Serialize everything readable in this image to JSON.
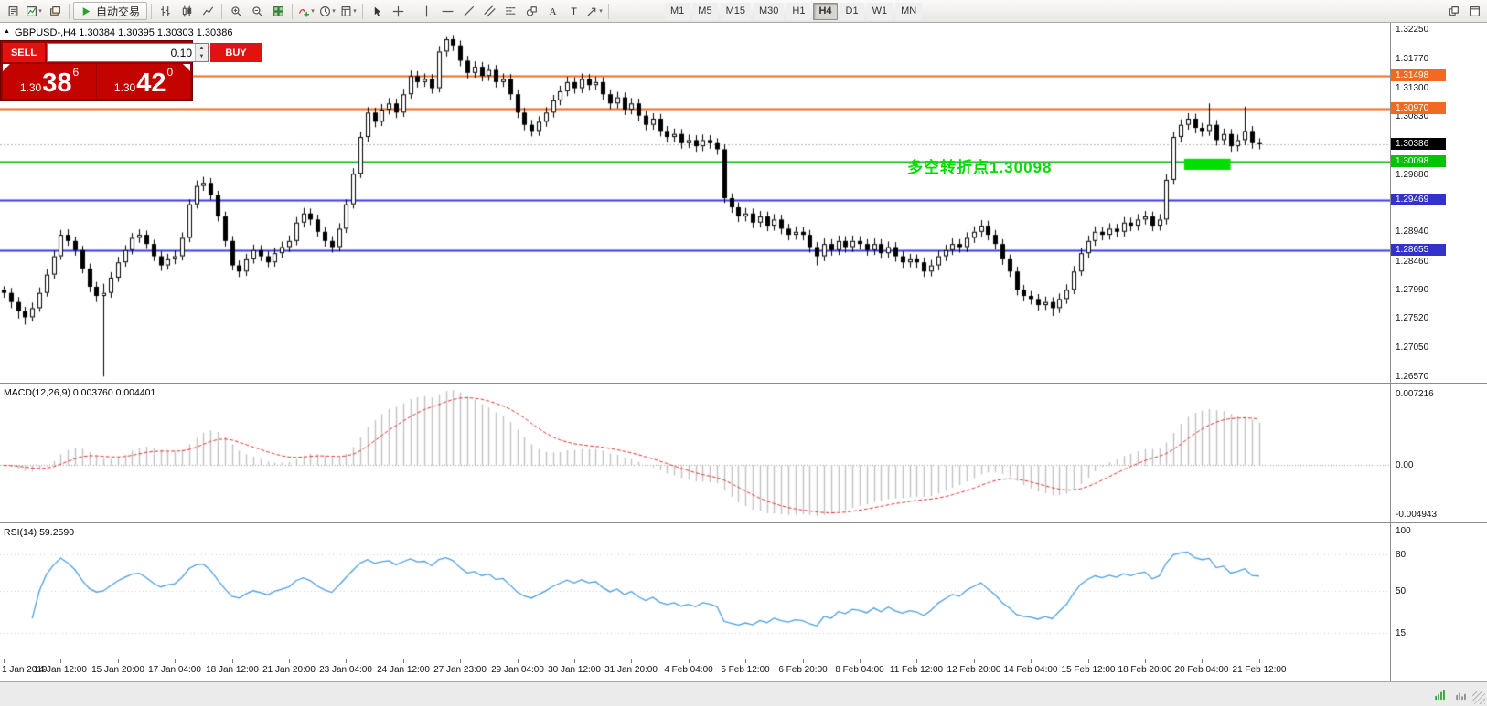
{
  "toolbar": {
    "groups": [
      {
        "buttons": [
          {
            "name": "new-order"
          },
          {
            "name": "new-chart",
            "dropdown": true
          },
          {
            "name": "profiles"
          }
        ]
      },
      {
        "buttons": [
          {
            "name": "autotrading",
            "label": "自动交易"
          }
        ]
      },
      {
        "buttons": [
          {
            "name": "bar-chart"
          },
          {
            "name": "candle-chart"
          },
          {
            "name": "line-chart"
          }
        ]
      },
      {
        "buttons": [
          {
            "name": "zoom-in"
          },
          {
            "name": "zoom-out"
          },
          {
            "name": "tile-windows"
          }
        ]
      },
      {
        "buttons": [
          {
            "name": "indicators",
            "dropdown": true
          },
          {
            "name": "periods",
            "dropdown": true
          },
          {
            "name": "template",
            "dropdown": true
          }
        ]
      },
      {
        "buttons": [
          {
            "name": "cursor"
          },
          {
            "name": "crosshair"
          }
        ]
      },
      {
        "buttons": [
          {
            "name": "vertical-line"
          },
          {
            "name": "horizontal-line"
          },
          {
            "name": "trendline"
          },
          {
            "name": "channel"
          },
          {
            "name": "fibonacci"
          },
          {
            "name": "shapes"
          },
          {
            "name": "text"
          },
          {
            "name": "label"
          },
          {
            "name": "arrows",
            "dropdown": true
          }
        ]
      }
    ],
    "timeframes": [
      "M1",
      "M5",
      "M15",
      "M30",
      "H1",
      "H4",
      "D1",
      "W1",
      "MN"
    ],
    "active_timeframe": "H4",
    "right_buttons": [
      {
        "name": "arrange-windows"
      },
      {
        "name": "fullscreen"
      }
    ]
  },
  "chart": {
    "symbol_line": "GBPUSD-,H4 1.30384 1.30395 1.30303 1.30386",
    "annotation": {
      "text": "多空转折点1.30098",
      "color": "#00dd00"
    },
    "trade_panel": {
      "sell_label": "SELL",
      "buy_label": "BUY",
      "volume": "0.10",
      "sell_price": [
        "1.30",
        "38",
        "6"
      ],
      "buy_price": [
        "1.30",
        "42",
        "0"
      ]
    }
  },
  "chart_data": {
    "type": "candlestick",
    "symbol": "GBPUSD-",
    "timeframe": "H4",
    "ylim": [
      1.2657,
      1.3225
    ],
    "first_open": 1.28,
    "candles": [
      [
        1.2806,
        1.2787,
        1.2795
      ],
      [
        1.2803,
        1.277,
        1.278
      ],
      [
        1.2788,
        1.2753,
        1.2765
      ],
      [
        1.2772,
        1.2743,
        1.2755
      ],
      [
        1.2779,
        1.2748,
        1.277
      ],
      [
        1.2804,
        1.2764,
        1.2795
      ],
      [
        1.2834,
        1.2789,
        1.2825
      ],
      [
        1.2864,
        1.2818,
        1.2855
      ],
      [
        1.2898,
        1.2849,
        1.289
      ],
      [
        1.2899,
        1.2872,
        1.288
      ],
      [
        1.2887,
        1.2856,
        1.2865
      ],
      [
        1.2872,
        1.2827,
        1.2835
      ],
      [
        1.2843,
        1.2796,
        1.2805
      ],
      [
        1.2813,
        1.278,
        1.279
      ],
      [
        1.281,
        1.2658,
        1.2795
      ],
      [
        1.2829,
        1.2787,
        1.282
      ],
      [
        1.2854,
        1.2813,
        1.2845
      ],
      [
        1.2873,
        1.2838,
        1.2865
      ],
      [
        1.2893,
        1.2858,
        1.2885
      ],
      [
        1.2899,
        1.2877,
        1.289
      ],
      [
        1.2897,
        1.2867,
        1.2875
      ],
      [
        1.2882,
        1.2847,
        1.2855
      ],
      [
        1.2863,
        1.2831,
        1.284
      ],
      [
        1.2859,
        1.2833,
        1.285
      ],
      [
        1.2864,
        1.2842,
        1.2855
      ],
      [
        1.2894,
        1.2848,
        1.2885
      ],
      [
        1.2948,
        1.2878,
        1.294
      ],
      [
        1.2979,
        1.2933,
        1.297
      ],
      [
        1.2985,
        1.2962,
        1.2975
      ],
      [
        1.2983,
        1.2947,
        1.2955
      ],
      [
        1.2962,
        1.2912,
        1.292
      ],
      [
        1.2928,
        1.2871,
        1.288
      ],
      [
        1.2888,
        1.2832,
        1.284
      ],
      [
        1.2848,
        1.2821,
        1.283
      ],
      [
        1.2859,
        1.2823,
        1.285
      ],
      [
        1.2874,
        1.2843,
        1.2865
      ],
      [
        1.2873,
        1.2847,
        1.2855
      ],
      [
        1.2863,
        1.2837,
        1.2845
      ],
      [
        1.2869,
        1.2838,
        1.286
      ],
      [
        1.2879,
        1.2852,
        1.287
      ],
      [
        1.2889,
        1.2862,
        1.288
      ],
      [
        1.2919,
        1.2873,
        1.291
      ],
      [
        1.2934,
        1.2902,
        1.2925
      ],
      [
        1.2933,
        1.2906,
        1.2915
      ],
      [
        1.2923,
        1.2887,
        1.2895
      ],
      [
        1.2903,
        1.2871,
        1.288
      ],
      [
        1.2888,
        1.2861,
        1.287
      ],
      [
        1.2909,
        1.2863,
        1.29
      ],
      [
        1.2948,
        1.2893,
        1.294
      ],
      [
        1.2999,
        1.2933,
        1.299
      ],
      [
        1.3059,
        1.2983,
        1.305
      ],
      [
        1.3099,
        1.3042,
        1.309
      ],
      [
        1.3098,
        1.3066,
        1.3075
      ],
      [
        1.3104,
        1.3068,
        1.3095
      ],
      [
        1.3114,
        1.3087,
        1.3105
      ],
      [
        1.3113,
        1.3081,
        1.309
      ],
      [
        1.3129,
        1.3083,
        1.312
      ],
      [
        1.3159,
        1.3113,
        1.315
      ],
      [
        1.3158,
        1.3131,
        1.314
      ],
      [
        1.3154,
        1.3132,
        1.3145
      ],
      [
        1.3153,
        1.3121,
        1.313
      ],
      [
        1.3199,
        1.3123,
        1.319
      ],
      [
        1.3215,
        1.3182,
        1.321
      ],
      [
        1.3217,
        1.3191,
        1.32
      ],
      [
        1.3208,
        1.3166,
        1.3175
      ],
      [
        1.3183,
        1.3146,
        1.3155
      ],
      [
        1.3174,
        1.3147,
        1.3165
      ],
      [
        1.3173,
        1.3141,
        1.315
      ],
      [
        1.3169,
        1.3142,
        1.316
      ],
      [
        1.3168,
        1.3131,
        1.314
      ],
      [
        1.3154,
        1.3132,
        1.3145
      ],
      [
        1.3153,
        1.3111,
        1.312
      ],
      [
        1.3128,
        1.3081,
        1.309
      ],
      [
        1.3098,
        1.3061,
        1.307
      ],
      [
        1.3078,
        1.3051,
        1.306
      ],
      [
        1.3084,
        1.3052,
        1.3075
      ],
      [
        1.3099,
        1.3067,
        1.309
      ],
      [
        1.3119,
        1.3082,
        1.311
      ],
      [
        1.3134,
        1.3102,
        1.3125
      ],
      [
        1.3149,
        1.3117,
        1.314
      ],
      [
        1.3148,
        1.3121,
        1.313
      ],
      [
        1.3154,
        1.3122,
        1.3145
      ],
      [
        1.3153,
        1.3126,
        1.3135
      ],
      [
        1.3149,
        1.3127,
        1.314
      ],
      [
        1.3148,
        1.3111,
        1.312
      ],
      [
        1.3128,
        1.3096,
        1.3105
      ],
      [
        1.3124,
        1.3097,
        1.3115
      ],
      [
        1.3123,
        1.3086,
        1.3095
      ],
      [
        1.3114,
        1.3087,
        1.3105
      ],
      [
        1.3113,
        1.3076,
        1.3085
      ],
      [
        1.3093,
        1.3061,
        1.307
      ],
      [
        1.3089,
        1.3062,
        1.308
      ],
      [
        1.3088,
        1.3051,
        1.306
      ],
      [
        1.3068,
        1.3041,
        1.305
      ],
      [
        1.3064,
        1.3042,
        1.3055
      ],
      [
        1.3063,
        1.3031,
        1.304
      ],
      [
        1.3054,
        1.3032,
        1.3045
      ],
      [
        1.3053,
        1.3026,
        1.3035
      ],
      [
        1.3054,
        1.3027,
        1.3045
      ],
      [
        1.3053,
        1.3031,
        1.304
      ],
      [
        1.3048,
        1.3021,
        1.303
      ],
      [
        1.3038,
        1.2942,
        1.295
      ],
      [
        1.2958,
        1.2926,
        1.2935
      ],
      [
        1.2943,
        1.2911,
        1.292
      ],
      [
        1.2934,
        1.2912,
        1.2925
      ],
      [
        1.2933,
        1.2901,
        1.291
      ],
      [
        1.2929,
        1.2902,
        1.292
      ],
      [
        1.2928,
        1.2896,
        1.2905
      ],
      [
        1.2924,
        1.2897,
        1.2915
      ],
      [
        1.2923,
        1.2891,
        1.29
      ],
      [
        1.2908,
        1.2881,
        1.289
      ],
      [
        1.2904,
        1.2882,
        1.2895
      ],
      [
        1.2903,
        1.2881,
        1.289
      ],
      [
        1.2898,
        1.2861,
        1.287
      ],
      [
        1.2878,
        1.284,
        1.2855
      ],
      [
        1.2884,
        1.2847,
        1.2875
      ],
      [
        1.2883,
        1.2856,
        1.2865
      ],
      [
        1.2889,
        1.2857,
        1.288
      ],
      [
        1.2888,
        1.2861,
        1.287
      ],
      [
        1.2889,
        1.2862,
        1.288
      ],
      [
        1.2888,
        1.2866,
        1.2875
      ],
      [
        1.2883,
        1.2856,
        1.2865
      ],
      [
        1.2884,
        1.2857,
        1.2875
      ],
      [
        1.2883,
        1.2851,
        1.286
      ],
      [
        1.2879,
        1.2852,
        1.287
      ],
      [
        1.2878,
        1.2846,
        1.2855
      ],
      [
        1.2863,
        1.2836,
        1.2845
      ],
      [
        1.2859,
        1.2837,
        1.285
      ],
      [
        1.2858,
        1.2836,
        1.2845
      ],
      [
        1.2853,
        1.2821,
        1.283
      ],
      [
        1.2849,
        1.2822,
        1.284
      ],
      [
        1.2864,
        1.2832,
        1.2855
      ],
      [
        1.2874,
        1.2847,
        1.2865
      ],
      [
        1.2884,
        1.2857,
        1.2875
      ],
      [
        1.2883,
        1.2861,
        1.287
      ],
      [
        1.2894,
        1.2862,
        1.2885
      ],
      [
        1.2904,
        1.2877,
        1.2895
      ],
      [
        1.2914,
        1.2887,
        1.2905
      ],
      [
        1.2913,
        1.2881,
        1.289
      ],
      [
        1.2898,
        1.2866,
        1.2875
      ],
      [
        1.2883,
        1.2841,
        1.285
      ],
      [
        1.2858,
        1.2821,
        1.283
      ],
      [
        1.2838,
        1.2791,
        1.28
      ],
      [
        1.2808,
        1.2781,
        1.279
      ],
      [
        1.2798,
        1.2776,
        1.2785
      ],
      [
        1.2793,
        1.2766,
        1.2775
      ],
      [
        1.2789,
        1.2767,
        1.278
      ],
      [
        1.2788,
        1.2757,
        1.277
      ],
      [
        1.2794,
        1.2762,
        1.2785
      ],
      [
        1.2809,
        1.2777,
        1.28
      ],
      [
        1.2839,
        1.2793,
        1.283
      ],
      [
        1.2869,
        1.2823,
        1.286
      ],
      [
        1.2889,
        1.2852,
        1.288
      ],
      [
        1.2904,
        1.2872,
        1.2895
      ],
      [
        1.2903,
        1.2881,
        1.289
      ],
      [
        1.2909,
        1.2882,
        1.29
      ],
      [
        1.2908,
        1.2886,
        1.2895
      ],
      [
        1.2919,
        1.2887,
        1.291
      ],
      [
        1.2918,
        1.2896,
        1.2905
      ],
      [
        1.2924,
        1.2897,
        1.2915
      ],
      [
        1.2929,
        1.2907,
        1.292
      ],
      [
        1.2928,
        1.2896,
        1.2905
      ],
      [
        1.2924,
        1.2897,
        1.2915
      ],
      [
        1.2989,
        1.2907,
        1.298
      ],
      [
        1.3059,
        1.2972,
        1.305
      ],
      [
        1.3079,
        1.3041,
        1.307
      ],
      [
        1.3089,
        1.3062,
        1.308
      ],
      [
        1.3088,
        1.3056,
        1.3065
      ],
      [
        1.3073,
        1.3051,
        1.306
      ],
      [
        1.3105,
        1.3052,
        1.307
      ],
      [
        1.3078,
        1.3036,
        1.3045
      ],
      [
        1.3064,
        1.3037,
        1.3055
      ],
      [
        1.3063,
        1.3026,
        1.3035
      ],
      [
        1.3054,
        1.3027,
        1.3045
      ],
      [
        1.31,
        1.3037,
        1.306
      ],
      [
        1.3068,
        1.3031,
        1.304
      ],
      [
        1.3048,
        1.303,
        1.30386
      ]
    ],
    "price_axis_labels": [
      "1.32250",
      "1.31770",
      "1.31300",
      "1.30830",
      "1.29880",
      "1.28940",
      "1.28460",
      "1.27990",
      "1.27520",
      "1.27050",
      "1.26570"
    ],
    "hlines": [
      {
        "label": "1.31498",
        "price": 1.31498,
        "color": "#f26a22",
        "width": 2,
        "badge": true,
        "badge_color": "#f26a22"
      },
      {
        "label": "1.30970",
        "price": 1.3097,
        "color": "#f26a22",
        "width": 2,
        "badge": true,
        "badge_color": "#f26a22"
      },
      {
        "label": "1.30098",
        "price": 1.30098,
        "color": "#21b229",
        "width": 2,
        "badge": true,
        "badge_color": "#00c400"
      },
      {
        "label": "1.29469",
        "price": 1.29469,
        "color": "#3a3af0",
        "width": 2,
        "badge": true,
        "badge_color": "#3333cc"
      },
      {
        "label": "1.28655",
        "price": 1.28655,
        "color": "#3a3af0",
        "width": 2,
        "badge": true,
        "badge_color": "#3333cc"
      }
    ],
    "bid": {
      "label": "1.30386",
      "price": 1.30386,
      "badge_color": "#000000"
    },
    "highlight_rect": {
      "from_index": 165.5,
      "to_index": 172,
      "price_top": 1.30145,
      "price_bottom": 1.29963,
      "color": "#00e000"
    },
    "time_labels": [
      "1 Jan 2019",
      "14 Jan 12:00",
      "15 Jan 20:00",
      "17 Jan 04:00",
      "18 Jan 12:00",
      "21 Jan 20:00",
      "23 Jan 04:00",
      "24 Jan 12:00",
      "27 Jan 23:00",
      "29 Jan 04:00",
      "30 Jan 12:00",
      "31 Jan 20:00",
      "4 Feb 04:00",
      "5 Feb 12:00",
      "6 Feb 20:00",
      "8 Feb 04:00",
      "11 Feb 12:00",
      "12 Feb 20:00",
      "14 Feb 04:00",
      "15 Feb 12:00",
      "18 Feb 20:00",
      "20 Feb 04:00",
      "21 Feb 12:00"
    ],
    "label_every": 8,
    "indicators": {
      "macd": {
        "display": "MACD(12,26,9) 0.003760 0.004401",
        "params": [
          12,
          26,
          9
        ],
        "ylim": [
          -0.0052,
          0.0075
        ],
        "scale": [
          {
            "text": "0.007216",
            "value": 0.007216
          },
          {
            "text": "0.00",
            "value": 0
          },
          {
            "text": "-0.004943",
            "value": -0.004943
          }
        ]
      },
      "rsi": {
        "display": "RSI(14) 59.2590",
        "period": 14,
        "value": 59.259,
        "levels": [
          80,
          50,
          15
        ],
        "scale": [
          {
            "text": "100",
            "value": 100
          },
          {
            "text": "80",
            "value": 80
          },
          {
            "text": "50",
            "value": 50
          },
          {
            "text": "15",
            "value": 15
          }
        ]
      }
    },
    "colors": {
      "up_candle": "#ffffff",
      "down_candle": "#000000",
      "outline": "#000000",
      "bid_line": "#b8b8b8",
      "macd_hist": "#c2c2c2",
      "macd_signal": "#e03535",
      "rsi_line": "#4d9fe0",
      "level_dots": "#cfcfcf"
    }
  }
}
